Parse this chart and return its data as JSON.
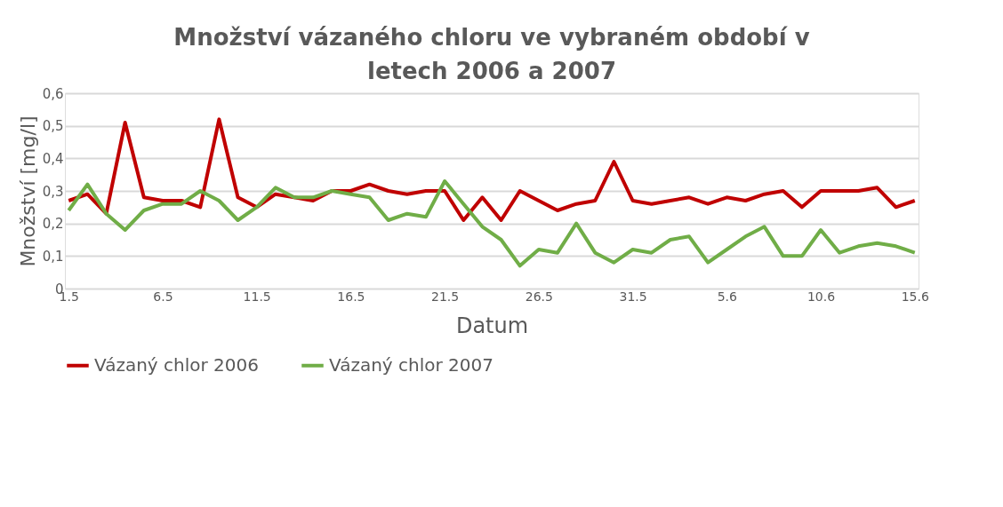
{
  "chart_data": {
    "type": "line",
    "title": "Množství vázaného chloru ve vybraném období v letech 2006 a 2007",
    "xlabel": "Datum",
    "ylabel": "Množství [mg/l]",
    "categories": [
      "1.5",
      null,
      null,
      null,
      null,
      "6.5",
      null,
      null,
      null,
      null,
      "11.5",
      null,
      null,
      null,
      null,
      "16.5",
      null,
      null,
      null,
      null,
      "21.5",
      null,
      null,
      null,
      null,
      "26.5",
      null,
      null,
      null,
      null,
      "31.5",
      null,
      null,
      null,
      null,
      "5.6",
      null,
      null,
      null,
      null,
      "10.6",
      null,
      null,
      null,
      null,
      "15.6"
    ],
    "series": [
      {
        "name": "Vázaný chlor 2006",
        "color": "#c00000",
        "values": [
          0.27,
          0.29,
          0.23,
          0.51,
          0.28,
          0.27,
          0.27,
          0.25,
          0.52,
          0.28,
          0.25,
          0.29,
          0.28,
          0.27,
          0.3,
          0.3,
          0.32,
          0.3,
          0.29,
          0.3,
          0.3,
          0.21,
          0.28,
          0.21,
          0.3,
          0.27,
          0.24,
          0.26,
          0.27,
          0.39,
          0.27,
          0.26,
          0.27,
          0.28,
          0.26,
          0.28,
          0.27,
          0.29,
          0.3,
          0.25,
          0.3,
          0.3,
          0.3,
          0.31,
          0.25,
          0.27
        ]
      },
      {
        "name": "Vázaný chlor 2007",
        "color": "#70ad47",
        "values": [
          0.24,
          0.32,
          0.23,
          0.18,
          0.24,
          0.26,
          0.26,
          0.3,
          0.27,
          0.21,
          0.25,
          0.31,
          0.28,
          0.28,
          0.3,
          0.29,
          0.28,
          0.21,
          0.23,
          0.22,
          0.33,
          0.26,
          0.19,
          0.15,
          0.07,
          0.12,
          0.11,
          0.2,
          0.11,
          0.08,
          0.12,
          0.11,
          0.15,
          0.16,
          0.08,
          0.12,
          0.16,
          0.19,
          0.1,
          0.1,
          0.18,
          0.11,
          0.13,
          0.14,
          0.13,
          0.11
        ]
      }
    ],
    "ylim": [
      0,
      0.6
    ],
    "yticks": [
      {
        "value": 0,
        "label": "0"
      },
      {
        "value": 0.1,
        "label": "0,1"
      },
      {
        "value": 0.2,
        "label": "0,2"
      },
      {
        "value": 0.3,
        "label": "0,3"
      },
      {
        "value": 0.4,
        "label": "0,4"
      },
      {
        "value": 0.5,
        "label": "0,5"
      },
      {
        "value": 0.6,
        "label": "0,6"
      }
    ],
    "grid": "y",
    "legend": "bottom",
    "marker": "none",
    "line_style": "solid"
  }
}
